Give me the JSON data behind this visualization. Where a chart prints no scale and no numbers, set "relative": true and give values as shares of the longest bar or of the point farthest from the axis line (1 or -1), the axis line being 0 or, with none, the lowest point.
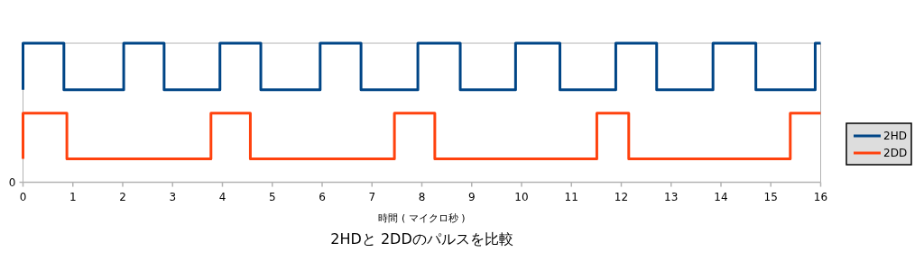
{
  "chart_data": {
    "type": "step",
    "title": "2HDと 2DDのパルスを比較",
    "xlabel": "時間 ( マイクロ秒 )",
    "relative": true,
    "xlim": [
      0,
      16
    ],
    "xticks": [
      0,
      1,
      2,
      3,
      4,
      5,
      6,
      7,
      8,
      9,
      10,
      11,
      12,
      13,
      14,
      15,
      16
    ],
    "annotations": [
      "0"
    ],
    "grid": false,
    "legend": "right",
    "line_style": "solid",
    "marker": "none",
    "series": [
      {
        "name": "2HD",
        "color": "#004586",
        "x": [
          0,
          0,
          0.82,
          2.02,
          2.83,
          3.95,
          4.77,
          5.96,
          6.78,
          7.92,
          8.77,
          9.88,
          10.77,
          11.89,
          12.71,
          13.84,
          14.7,
          15.89,
          16
        ],
        "values": [
          0.665,
          1,
          0.665,
          1,
          0.665,
          1,
          0.665,
          1,
          0.665,
          1,
          0.665,
          1,
          0.665,
          1,
          0.665,
          1,
          0.665,
          1,
          1
        ]
      },
      {
        "name": "2DD",
        "color": "#ff420e",
        "x": [
          0,
          0,
          0.88,
          3.77,
          4.56,
          7.45,
          8.26,
          11.51,
          12.15,
          15.39,
          16
        ],
        "values": [
          0.168,
          0.497,
          0.168,
          0.497,
          0.168,
          0.497,
          0.168,
          0.497,
          0.168,
          0.497,
          0.497
        ]
      }
    ]
  }
}
